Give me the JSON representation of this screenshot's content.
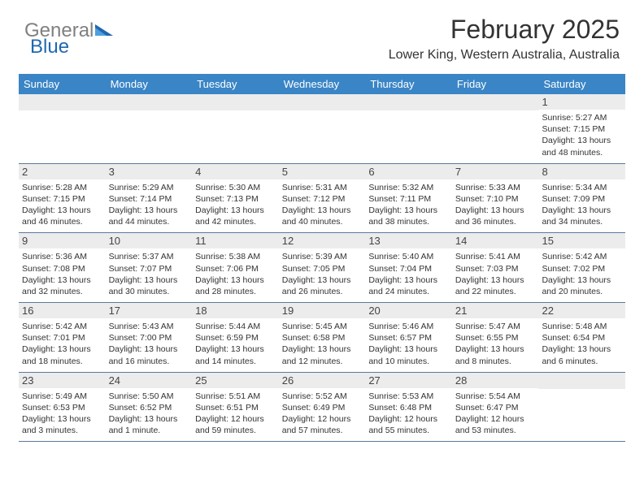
{
  "logo": {
    "text_gray": "General",
    "text_blue": "Blue"
  },
  "title": "February 2025",
  "location": "Lower King, Western Australia, Australia",
  "colors": {
    "header_bg": "#3a85c6",
    "header_text": "#ffffff",
    "band_bg": "#ececec",
    "rule": "#5b7a9a",
    "logo_gray": "#808080",
    "logo_blue": "#2068b0"
  },
  "day_headers": [
    "Sunday",
    "Monday",
    "Tuesday",
    "Wednesday",
    "Thursday",
    "Friday",
    "Saturday"
  ],
  "weeks": [
    [
      {
        "blank": true
      },
      {
        "blank": true
      },
      {
        "blank": true
      },
      {
        "blank": true
      },
      {
        "blank": true
      },
      {
        "blank": true
      },
      {
        "num": "1",
        "sunrise": "Sunrise: 5:27 AM",
        "sunset": "Sunset: 7:15 PM",
        "daylight": "Daylight: 13 hours and 48 minutes."
      }
    ],
    [
      {
        "num": "2",
        "sunrise": "Sunrise: 5:28 AM",
        "sunset": "Sunset: 7:15 PM",
        "daylight": "Daylight: 13 hours and 46 minutes."
      },
      {
        "num": "3",
        "sunrise": "Sunrise: 5:29 AM",
        "sunset": "Sunset: 7:14 PM",
        "daylight": "Daylight: 13 hours and 44 minutes."
      },
      {
        "num": "4",
        "sunrise": "Sunrise: 5:30 AM",
        "sunset": "Sunset: 7:13 PM",
        "daylight": "Daylight: 13 hours and 42 minutes."
      },
      {
        "num": "5",
        "sunrise": "Sunrise: 5:31 AM",
        "sunset": "Sunset: 7:12 PM",
        "daylight": "Daylight: 13 hours and 40 minutes."
      },
      {
        "num": "6",
        "sunrise": "Sunrise: 5:32 AM",
        "sunset": "Sunset: 7:11 PM",
        "daylight": "Daylight: 13 hours and 38 minutes."
      },
      {
        "num": "7",
        "sunrise": "Sunrise: 5:33 AM",
        "sunset": "Sunset: 7:10 PM",
        "daylight": "Daylight: 13 hours and 36 minutes."
      },
      {
        "num": "8",
        "sunrise": "Sunrise: 5:34 AM",
        "sunset": "Sunset: 7:09 PM",
        "daylight": "Daylight: 13 hours and 34 minutes."
      }
    ],
    [
      {
        "num": "9",
        "sunrise": "Sunrise: 5:36 AM",
        "sunset": "Sunset: 7:08 PM",
        "daylight": "Daylight: 13 hours and 32 minutes."
      },
      {
        "num": "10",
        "sunrise": "Sunrise: 5:37 AM",
        "sunset": "Sunset: 7:07 PM",
        "daylight": "Daylight: 13 hours and 30 minutes."
      },
      {
        "num": "11",
        "sunrise": "Sunrise: 5:38 AM",
        "sunset": "Sunset: 7:06 PM",
        "daylight": "Daylight: 13 hours and 28 minutes."
      },
      {
        "num": "12",
        "sunrise": "Sunrise: 5:39 AM",
        "sunset": "Sunset: 7:05 PM",
        "daylight": "Daylight: 13 hours and 26 minutes."
      },
      {
        "num": "13",
        "sunrise": "Sunrise: 5:40 AM",
        "sunset": "Sunset: 7:04 PM",
        "daylight": "Daylight: 13 hours and 24 minutes."
      },
      {
        "num": "14",
        "sunrise": "Sunrise: 5:41 AM",
        "sunset": "Sunset: 7:03 PM",
        "daylight": "Daylight: 13 hours and 22 minutes."
      },
      {
        "num": "15",
        "sunrise": "Sunrise: 5:42 AM",
        "sunset": "Sunset: 7:02 PM",
        "daylight": "Daylight: 13 hours and 20 minutes."
      }
    ],
    [
      {
        "num": "16",
        "sunrise": "Sunrise: 5:42 AM",
        "sunset": "Sunset: 7:01 PM",
        "daylight": "Daylight: 13 hours and 18 minutes."
      },
      {
        "num": "17",
        "sunrise": "Sunrise: 5:43 AM",
        "sunset": "Sunset: 7:00 PM",
        "daylight": "Daylight: 13 hours and 16 minutes."
      },
      {
        "num": "18",
        "sunrise": "Sunrise: 5:44 AM",
        "sunset": "Sunset: 6:59 PM",
        "daylight": "Daylight: 13 hours and 14 minutes."
      },
      {
        "num": "19",
        "sunrise": "Sunrise: 5:45 AM",
        "sunset": "Sunset: 6:58 PM",
        "daylight": "Daylight: 13 hours and 12 minutes."
      },
      {
        "num": "20",
        "sunrise": "Sunrise: 5:46 AM",
        "sunset": "Sunset: 6:57 PM",
        "daylight": "Daylight: 13 hours and 10 minutes."
      },
      {
        "num": "21",
        "sunrise": "Sunrise: 5:47 AM",
        "sunset": "Sunset: 6:55 PM",
        "daylight": "Daylight: 13 hours and 8 minutes."
      },
      {
        "num": "22",
        "sunrise": "Sunrise: 5:48 AM",
        "sunset": "Sunset: 6:54 PM",
        "daylight": "Daylight: 13 hours and 6 minutes."
      }
    ],
    [
      {
        "num": "23",
        "sunrise": "Sunrise: 5:49 AM",
        "sunset": "Sunset: 6:53 PM",
        "daylight": "Daylight: 13 hours and 3 minutes."
      },
      {
        "num": "24",
        "sunrise": "Sunrise: 5:50 AM",
        "sunset": "Sunset: 6:52 PM",
        "daylight": "Daylight: 13 hours and 1 minute."
      },
      {
        "num": "25",
        "sunrise": "Sunrise: 5:51 AM",
        "sunset": "Sunset: 6:51 PM",
        "daylight": "Daylight: 12 hours and 59 minutes."
      },
      {
        "num": "26",
        "sunrise": "Sunrise: 5:52 AM",
        "sunset": "Sunset: 6:49 PM",
        "daylight": "Daylight: 12 hours and 57 minutes."
      },
      {
        "num": "27",
        "sunrise": "Sunrise: 5:53 AM",
        "sunset": "Sunset: 6:48 PM",
        "daylight": "Daylight: 12 hours and 55 minutes."
      },
      {
        "num": "28",
        "sunrise": "Sunrise: 5:54 AM",
        "sunset": "Sunset: 6:47 PM",
        "daylight": "Daylight: 12 hours and 53 minutes."
      },
      {
        "blank": true
      }
    ]
  ]
}
